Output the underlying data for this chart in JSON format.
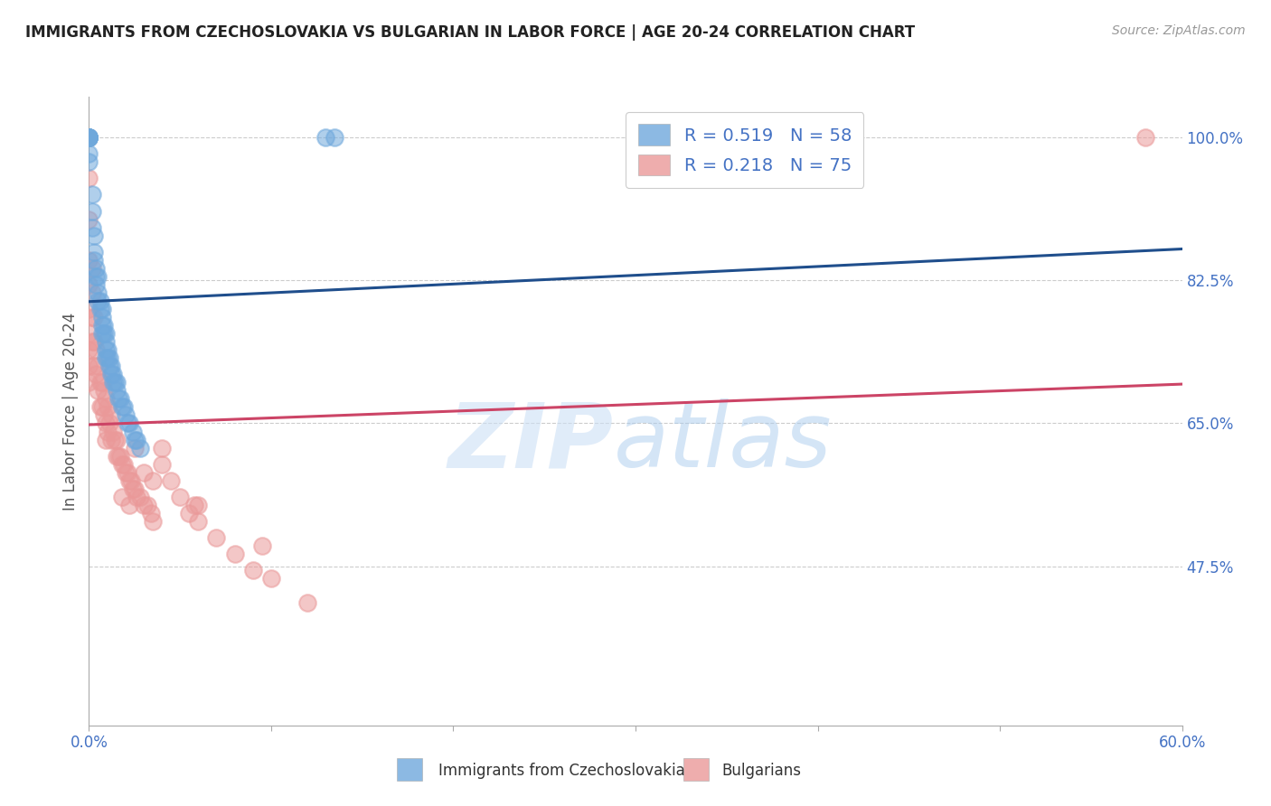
{
  "title": "IMMIGRANTS FROM CZECHOSLOVAKIA VS BULGARIAN IN LABOR FORCE | AGE 20-24 CORRELATION CHART",
  "source": "Source: ZipAtlas.com",
  "ylabel": "In Labor Force | Age 20-24",
  "xlim": [
    0.0,
    0.6
  ],
  "ylim": [
    0.28,
    1.05
  ],
  "xticks": [
    0.0,
    0.1,
    0.2,
    0.3,
    0.4,
    0.5,
    0.6
  ],
  "xticklabels": [
    "0.0%",
    "",
    "",
    "",
    "",
    "",
    "60.0%"
  ],
  "yticks": [
    0.475,
    0.65,
    0.825,
    1.0
  ],
  "yticklabels": [
    "47.5%",
    "65.0%",
    "82.5%",
    "100.0%"
  ],
  "legend_R1": "R = 0.519",
  "legend_N1": "N = 58",
  "legend_R2": "R = 0.218",
  "legend_N2": "N = 75",
  "color_czech": "#6fa8dc",
  "color_bulg": "#ea9999",
  "line_color_czech": "#1f4e8c",
  "line_color_bulg": "#cc4466",
  "czech_x": [
    0.0,
    0.0,
    0.0,
    0.0,
    0.0,
    0.0,
    0.0,
    0.0,
    0.0,
    0.0,
    0.002,
    0.002,
    0.002,
    0.003,
    0.003,
    0.003,
    0.004,
    0.004,
    0.004,
    0.005,
    0.005,
    0.005,
    0.006,
    0.006,
    0.007,
    0.007,
    0.007,
    0.007,
    0.008,
    0.008,
    0.009,
    0.009,
    0.009,
    0.009,
    0.01,
    0.01,
    0.011,
    0.011,
    0.012,
    0.012,
    0.013,
    0.013,
    0.014,
    0.015,
    0.015,
    0.016,
    0.017,
    0.018,
    0.019,
    0.02,
    0.021,
    0.022,
    0.024,
    0.025,
    0.026,
    0.028,
    0.13,
    0.135
  ],
  "czech_y": [
    1.0,
    1.0,
    1.0,
    1.0,
    1.0,
    1.0,
    1.0,
    1.0,
    0.98,
    0.97,
    0.93,
    0.91,
    0.89,
    0.88,
    0.86,
    0.85,
    0.84,
    0.83,
    0.82,
    0.83,
    0.81,
    0.8,
    0.8,
    0.79,
    0.79,
    0.78,
    0.77,
    0.76,
    0.77,
    0.76,
    0.76,
    0.75,
    0.74,
    0.73,
    0.74,
    0.73,
    0.73,
    0.72,
    0.72,
    0.71,
    0.71,
    0.7,
    0.7,
    0.7,
    0.69,
    0.68,
    0.68,
    0.67,
    0.67,
    0.66,
    0.65,
    0.65,
    0.64,
    0.63,
    0.63,
    0.62,
    1.0,
    1.0
  ],
  "bulg_x": [
    0.0,
    0.0,
    0.0,
    0.0,
    0.0,
    0.0,
    0.0,
    0.0,
    0.0,
    0.0,
    0.002,
    0.002,
    0.002,
    0.002,
    0.003,
    0.003,
    0.003,
    0.004,
    0.004,
    0.005,
    0.005,
    0.006,
    0.006,
    0.007,
    0.007,
    0.008,
    0.008,
    0.009,
    0.009,
    0.009,
    0.01,
    0.01,
    0.011,
    0.012,
    0.012,
    0.013,
    0.014,
    0.015,
    0.015,
    0.016,
    0.017,
    0.018,
    0.019,
    0.02,
    0.021,
    0.022,
    0.023,
    0.024,
    0.025,
    0.026,
    0.028,
    0.03,
    0.032,
    0.034,
    0.035,
    0.04,
    0.045,
    0.05,
    0.055,
    0.06,
    0.07,
    0.08,
    0.09,
    0.1,
    0.12,
    0.035,
    0.06,
    0.095,
    0.025,
    0.03,
    0.018,
    0.022,
    0.04,
    0.058,
    0.58
  ],
  "bulg_y": [
    1.0,
    0.95,
    0.9,
    0.85,
    0.82,
    0.79,
    0.76,
    0.74,
    0.72,
    0.7,
    0.84,
    0.81,
    0.78,
    0.75,
    0.78,
    0.75,
    0.72,
    0.74,
    0.71,
    0.72,
    0.69,
    0.7,
    0.67,
    0.7,
    0.67,
    0.69,
    0.66,
    0.68,
    0.65,
    0.63,
    0.67,
    0.64,
    0.65,
    0.66,
    0.63,
    0.64,
    0.63,
    0.63,
    0.61,
    0.61,
    0.61,
    0.6,
    0.6,
    0.59,
    0.59,
    0.58,
    0.58,
    0.57,
    0.57,
    0.56,
    0.56,
    0.55,
    0.55,
    0.54,
    0.53,
    0.62,
    0.58,
    0.56,
    0.54,
    0.53,
    0.51,
    0.49,
    0.47,
    0.46,
    0.43,
    0.58,
    0.55,
    0.5,
    0.62,
    0.59,
    0.56,
    0.55,
    0.6,
    0.55,
    1.0
  ]
}
